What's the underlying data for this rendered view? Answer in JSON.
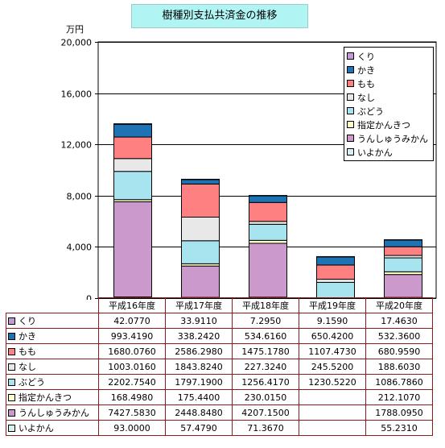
{
  "chart_data": {
    "type": "bar",
    "stacked": true,
    "title": "樹種別支払共済金の推移",
    "ylabel": "万円",
    "ylim": [
      0,
      20000
    ],
    "yticks": [
      "0",
      "4,000",
      "8,000",
      "12,000",
      "16,000",
      "20,000"
    ],
    "ytick_values": [
      0,
      4000,
      8000,
      12000,
      16000,
      20000
    ],
    "categories": [
      "平成16年度",
      "平成17年度",
      "平成18年度",
      "平成19年度",
      "平成20年度"
    ],
    "legend_position": "top-right",
    "series": [
      {
        "name": "くり",
        "color": "#c39bd3",
        "values": [
          42.077,
          33.911,
          7.295,
          9.159,
          17.463
        ],
        "labels": [
          "42.0770",
          "33.9110",
          "7.2950",
          "9.1590",
          "17.4630"
        ]
      },
      {
        "name": "かき",
        "color": "#1e73b4",
        "values": [
          993.419,
          338.242,
          534.616,
          650.42,
          532.36
        ],
        "labels": [
          "993.4190",
          "338.2420",
          "534.6160",
          "650.4200",
          "532.3600"
        ]
      },
      {
        "name": "もも",
        "color": "#ff8080",
        "values": [
          1680.076,
          2586.298,
          1475.178,
          1107.473,
          680.959
        ],
        "labels": [
          "1680.0760",
          "2586.2980",
          "1475.1780",
          "1107.4730",
          "680.9590"
        ]
      },
      {
        "name": "なし",
        "color": "#e8e8e8",
        "values": [
          1003.016,
          1843.824,
          227.324,
          245.52,
          188.603
        ],
        "labels": [
          "1003.0160",
          "1843.8240",
          "227.3240",
          "245.5200",
          "188.6030"
        ]
      },
      {
        "name": "ぶどう",
        "color": "#a8e4f0",
        "values": [
          2202.754,
          1797.19,
          1256.417,
          1230.522,
          1086.786
        ],
        "labels": [
          "2202.7540",
          "1797.1900",
          "1256.4170",
          "1230.5220",
          "1086.7860"
        ]
      },
      {
        "name": "指定かんきつ",
        "color": "#ffffc8",
        "values": [
          168.498,
          175.44,
          230.015,
          null,
          212.107
        ],
        "labels": [
          "168.4980",
          "175.4400",
          "230.0150",
          "",
          "212.1070"
        ]
      },
      {
        "name": "うんしゅうみかん",
        "color": "#cc99cc",
        "values": [
          7427.583,
          2448.848,
          4207.15,
          null,
          1788.095
        ],
        "labels": [
          "7427.5830",
          "2448.8480",
          "4207.1500",
          "",
          "1788.0950"
        ]
      },
      {
        "name": "いよかん",
        "color": "#d8f0f0",
        "values": [
          93.0,
          57.479,
          71.367,
          null,
          55.231
        ],
        "labels": [
          "93.0000",
          "57.4790",
          "71.3670",
          "",
          "55.2310"
        ]
      }
    ]
  }
}
